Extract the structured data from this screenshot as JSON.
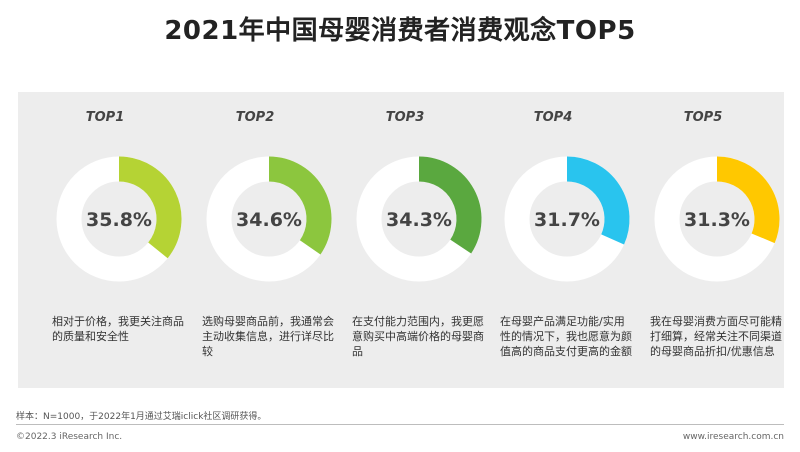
{
  "title": "2021年中国母婴消费者消费观念TOP5",
  "chart_data": {
    "type": "donut",
    "title": "2021年中国母婴消费者消费观念TOP5",
    "unit": "%",
    "items": [
      {
        "rank": "TOP1",
        "value": 35.8,
        "label": "35.8%",
        "color": "#b5d334",
        "description": "相对于价格，我更关注商品的质量和安全性"
      },
      {
        "rank": "TOP2",
        "value": 34.6,
        "label": "34.6%",
        "color": "#8cc63e",
        "description": "选购母婴商品前，我通常会主动收集信息，进行详尽比较"
      },
      {
        "rank": "TOP3",
        "value": 34.3,
        "label": "34.3%",
        "color": "#5aa83f",
        "description": "在支付能力范围内，我更愿意购买中高端价格的母婴商品"
      },
      {
        "rank": "TOP4",
        "value": 31.7,
        "label": "31.7%",
        "color": "#29c4ee",
        "description": "在母婴产品满足功能/实用性的情况下，我也愿意为颜值高的商品支付更高的金额"
      },
      {
        "rank": "TOP5",
        "value": 31.3,
        "label": "31.3%",
        "color": "#ffc800",
        "description": "我在母婴消费方面尽可能精打细算，经常关注不同渠道的母婴商品折扣/优惠信息"
      }
    ]
  },
  "footer": {
    "note": "样本：N=1000，于2022年1月通过艾瑞iclick社区调研获得。",
    "copyright": "©2022.3 iResearch Inc.",
    "site": "www.iresearch.com.cn"
  }
}
